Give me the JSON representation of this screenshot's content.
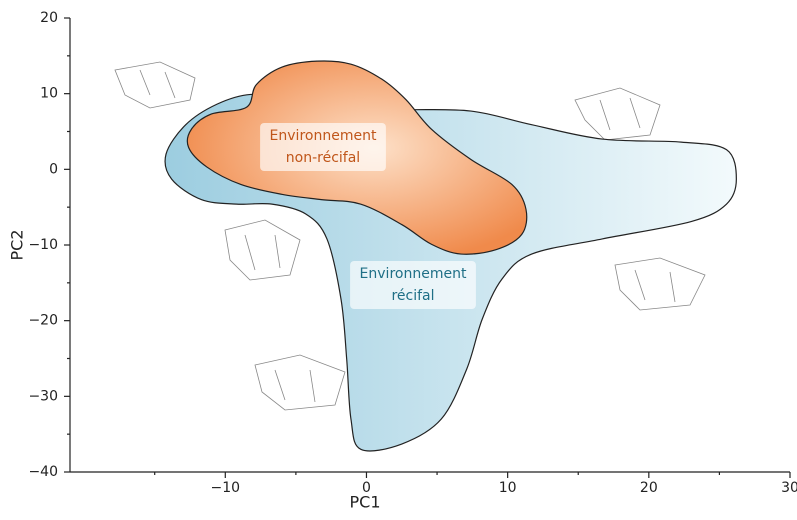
{
  "chart_data": {
    "type": "region",
    "xlabel": "PC1",
    "ylabel": "PC2",
    "xlim": [
      -21,
      30
    ],
    "ylim": [
      -40,
      20
    ],
    "xticks": [
      {
        "value": -10,
        "label": "−10"
      },
      0,
      10,
      20,
      30
    ],
    "yticks": [
      {
        "value": -40,
        "label": "−40"
      },
      {
        "value": -30,
        "label": "−30"
      },
      {
        "value": -20,
        "label": "−20"
      },
      {
        "value": -10,
        "label": "−10"
      },
      0,
      10,
      20
    ],
    "xminorticks": [
      -15,
      -5,
      5,
      15,
      25
    ],
    "yminorticks": [
      -35,
      -25,
      -15,
      -5,
      5,
      15
    ],
    "series": [
      {
        "name": "Environnement récifal",
        "color": "#a8d4e2",
        "text_color": "#1f6f86",
        "x": [
          -14.2,
          -12.8,
          -10.6,
          -8.2,
          -6.0,
          -2.5,
          2.5,
          7.4,
          11.7,
          16.7,
          22.3,
          25.5,
          26.2,
          25.5,
          23.0,
          16.7,
          11.7,
          9.6,
          8.2,
          7.1,
          5.3,
          2.5,
          -0.4,
          -1.1,
          -1.4,
          -1.8,
          -2.8,
          -4.3,
          -6.7,
          -9.2,
          -11.7,
          -13.8
        ],
        "y": [
          2.0,
          5.9,
          8.6,
          9.9,
          9.2,
          8.2,
          7.9,
          7.7,
          5.9,
          4.0,
          3.6,
          2.6,
          -1.3,
          -4.6,
          -6.9,
          -9.2,
          -11.2,
          -14.5,
          -19.8,
          -26.4,
          -33.0,
          -36.3,
          -37.0,
          -33.0,
          -25.1,
          -17.2,
          -9.2,
          -5.9,
          -4.6,
          -4.6,
          -4.0,
          -1.3
        ]
      },
      {
        "name": "Environnement non-récifal",
        "color": "#f08a4b",
        "text_color": "#c0561a",
        "x": [
          -12.4,
          -11.0,
          -8.5,
          -7.8,
          -6.0,
          -3.5,
          -1.1,
          1.1,
          2.8,
          4.6,
          7.4,
          10.3,
          11.3,
          11.0,
          9.2,
          6.7,
          4.6,
          2.5,
          -0.4,
          -3.2,
          -6.0,
          -8.9,
          -11.3,
          -12.6
        ],
        "y": [
          5.3,
          7.3,
          8.2,
          11.2,
          13.5,
          14.3,
          13.9,
          11.9,
          9.2,
          5.3,
          1.3,
          -2.0,
          -5.3,
          -8.6,
          -10.6,
          -11.2,
          -9.9,
          -7.3,
          -4.6,
          -4.0,
          -3.3,
          -2.0,
          0.3,
          2.9
        ]
      }
    ]
  }
}
